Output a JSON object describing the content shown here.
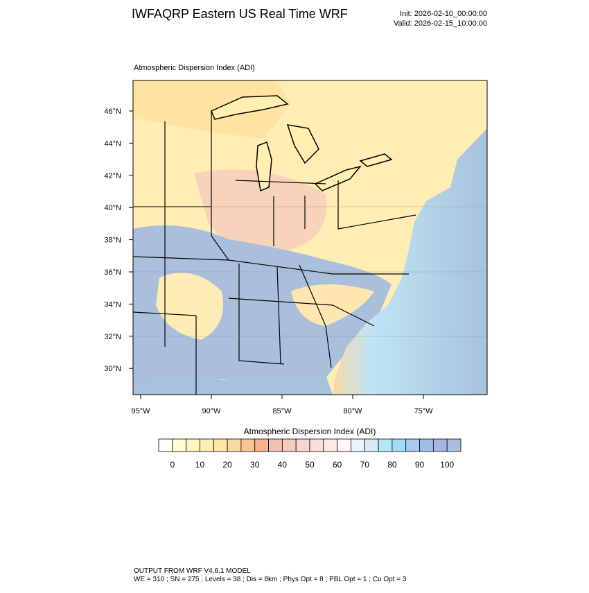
{
  "header": {
    "title": "IWFAQRP Eastern US Real Time WRF",
    "init": "Init: 2026-02-10_00:00:00",
    "valid": "Valid: 2026-02-15_10:00:00"
  },
  "map": {
    "title": "Atmospheric Dispersion Index   (ADI)",
    "lat_labels": [
      "46°N",
      "44°N",
      "42°N",
      "40°N",
      "38°N",
      "36°N",
      "34°N",
      "32°N",
      "30°N"
    ],
    "lon_labels": [
      "95°W",
      "90°W",
      "85°W",
      "80°W",
      "75°W"
    ]
  },
  "colorbar": {
    "title": "Atmospheric Dispersion Index  (ADI)",
    "colors": [
      "#ffffff",
      "#fffbd6",
      "#fff5c2",
      "#ffeeb2",
      "#ffe6a6",
      "#fcd8a0",
      "#f9c594",
      "#f5b394",
      "#f6c0b2",
      "#f8cabf",
      "#fad5cd",
      "#fcdfda",
      "#fde9e6",
      "#fff6f6",
      "#eef2ff",
      "#d6ecf8",
      "#b8e6f8",
      "#a2dbf7",
      "#aac9f0",
      "#9fbbea",
      "#a4b7e2",
      "#a9bfdc"
    ],
    "ticks": [
      0,
      10,
      20,
      30,
      40,
      50,
      60,
      70,
      80,
      90,
      100
    ]
  },
  "footer": {
    "line1": "OUTPUT FROM WRF V4.6.1 MODEL",
    "line2": "WE = 310 ; SN = 275 ; Levels = 38 ; Dis = 8km ; Phys Opt = 8 ; PBL Opt = 1 ; Cu Opt = 3"
  }
}
